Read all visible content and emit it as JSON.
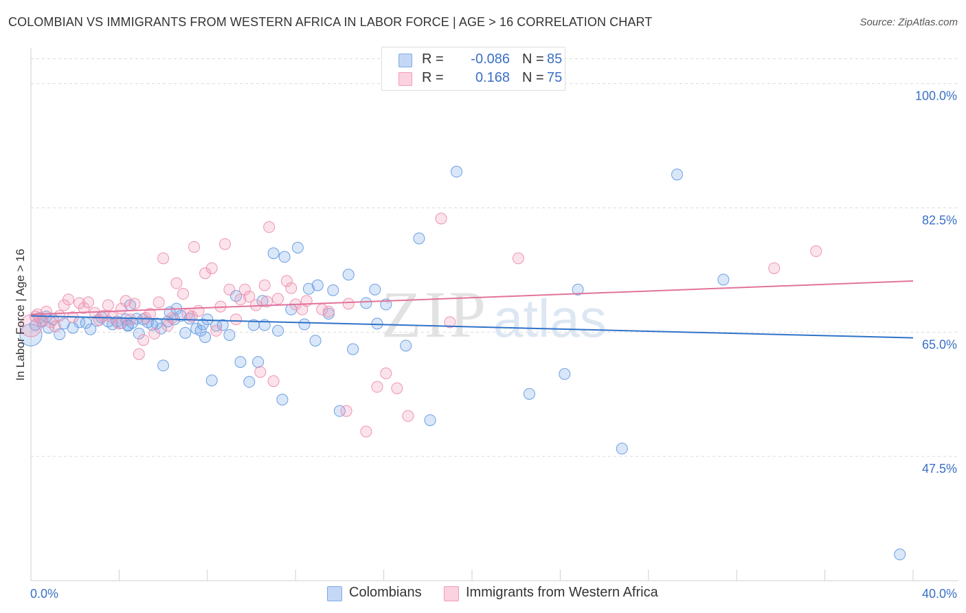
{
  "title": "COLOMBIAN VS IMMIGRANTS FROM WESTERN AFRICA IN LABOR FORCE | AGE > 16 CORRELATION CHART",
  "source": "Source: ZipAtlas.com",
  "watermark": "ZIPatlas",
  "legend": {
    "rows": [
      {
        "r_label": "R =",
        "r_value": "-0.086",
        "n_label": "N =",
        "n_value": "85"
      },
      {
        "r_label": "R =",
        "r_value": "0.168",
        "n_label": "N =",
        "n_value": "75"
      }
    ]
  },
  "chart_data": {
    "type": "scatter",
    "ylabel": "In Labor Force | Age > 16",
    "xlim": [
      0,
      40
    ],
    "ylim": [
      30,
      105
    ],
    "x_tick_labels": [
      "0.0%",
      "40.0%"
    ],
    "y_ticks": [
      47.5,
      65.0,
      82.5,
      100.0
    ],
    "y_tick_labels": [
      "47.5%",
      "65.0%",
      "82.5%",
      "100.0%"
    ],
    "grid": true,
    "colors": {
      "Colombians": "#7aaae8",
      "Immigrants from Western Africa": "#f29ab6",
      "Colombians_line": "#2f72c8",
      "Immigrants from Western Africa_line": "#e2729a"
    },
    "series": [
      {
        "name": "Colombians",
        "trend": {
          "x": [
            0,
            40
          ],
          "y": [
            67.3,
            64.2
          ]
        },
        "points": [
          [
            0.0,
            64.6
          ],
          [
            0.2,
            66.0
          ],
          [
            0.4,
            67.0
          ],
          [
            0.5,
            66.5
          ],
          [
            0.7,
            67.2
          ],
          [
            0.8,
            65.6
          ],
          [
            1.0,
            66.8
          ],
          [
            1.3,
            64.7
          ],
          [
            1.5,
            66.2
          ],
          [
            1.9,
            65.6
          ],
          [
            2.2,
            66.4
          ],
          [
            2.5,
            66.3
          ],
          [
            2.7,
            65.4
          ],
          [
            3.0,
            66.6
          ],
          [
            3.2,
            67.1
          ],
          [
            3.5,
            66.5
          ],
          [
            3.7,
            66.1
          ],
          [
            3.9,
            66.5
          ],
          [
            4.1,
            66.3
          ],
          [
            4.3,
            66.8
          ],
          [
            4.4,
            66.0
          ],
          [
            4.6,
            66.3
          ],
          [
            4.8,
            66.9
          ],
          [
            4.4,
            65.9
          ],
          [
            4.5,
            68.8
          ],
          [
            4.9,
            64.8
          ],
          [
            5.1,
            66.8
          ],
          [
            5.3,
            66.4
          ],
          [
            5.5,
            66.0
          ],
          [
            5.7,
            66.2
          ],
          [
            5.9,
            65.5
          ],
          [
            6.0,
            60.3
          ],
          [
            6.2,
            66.5
          ],
          [
            6.3,
            67.8
          ],
          [
            6.5,
            66.8
          ],
          [
            6.6,
            68.3
          ],
          [
            6.8,
            67.3
          ],
          [
            7.0,
            64.9
          ],
          [
            7.2,
            66.9
          ],
          [
            7.5,
            65.5
          ],
          [
            7.7,
            65.2
          ],
          [
            7.8,
            66.1
          ],
          [
            7.9,
            64.3
          ],
          [
            8.0,
            66.8
          ],
          [
            8.2,
            58.2
          ],
          [
            8.4,
            65.9
          ],
          [
            8.7,
            66.0
          ],
          [
            9.0,
            64.6
          ],
          [
            9.3,
            70.1
          ],
          [
            9.5,
            60.8
          ],
          [
            9.9,
            58.0
          ],
          [
            10.1,
            66.0
          ],
          [
            10.3,
            60.8
          ],
          [
            10.5,
            69.4
          ],
          [
            10.6,
            66.0
          ],
          [
            11.0,
            76.1
          ],
          [
            11.2,
            65.2
          ],
          [
            11.4,
            55.5
          ],
          [
            11.5,
            75.6
          ],
          [
            11.8,
            68.2
          ],
          [
            12.1,
            76.9
          ],
          [
            12.4,
            66.1
          ],
          [
            12.6,
            71.1
          ],
          [
            12.9,
            63.8
          ],
          [
            13.0,
            71.6
          ],
          [
            13.5,
            67.6
          ],
          [
            13.7,
            70.9
          ],
          [
            14.0,
            53.9
          ],
          [
            14.4,
            73.1
          ],
          [
            14.6,
            62.6
          ],
          [
            15.2,
            69.1
          ],
          [
            15.6,
            71.0
          ],
          [
            15.7,
            66.2
          ],
          [
            16.1,
            68.9
          ],
          [
            17.0,
            63.1
          ],
          [
            17.6,
            78.2
          ],
          [
            18.1,
            52.6
          ],
          [
            19.3,
            87.6
          ],
          [
            22.6,
            56.3
          ],
          [
            24.2,
            59.1
          ],
          [
            24.8,
            71.0
          ],
          [
            26.8,
            48.6
          ],
          [
            29.3,
            87.2
          ],
          [
            31.4,
            72.4
          ],
          [
            39.4,
            33.7
          ]
        ]
      },
      {
        "name": "Immigrants from Western Africa",
        "trend": {
          "x": [
            0,
            40
          ],
          "y": [
            67.5,
            72.2
          ]
        },
        "points": [
          [
            0.0,
            65.9
          ],
          [
            0.3,
            67.5
          ],
          [
            0.5,
            66.6
          ],
          [
            0.7,
            67.9
          ],
          [
            0.9,
            66.4
          ],
          [
            1.1,
            65.8
          ],
          [
            1.3,
            67.3
          ],
          [
            1.5,
            68.8
          ],
          [
            1.7,
            69.6
          ],
          [
            1.9,
            67.1
          ],
          [
            2.2,
            69.1
          ],
          [
            2.4,
            68.4
          ],
          [
            2.6,
            69.2
          ],
          [
            2.9,
            67.7
          ],
          [
            3.1,
            66.7
          ],
          [
            3.3,
            67.3
          ],
          [
            3.5,
            68.8
          ],
          [
            3.7,
            67.1
          ],
          [
            4.0,
            66.2
          ],
          [
            4.1,
            68.3
          ],
          [
            4.3,
            69.4
          ],
          [
            4.5,
            66.8
          ],
          [
            4.7,
            69.0
          ],
          [
            4.9,
            61.9
          ],
          [
            5.1,
            63.9
          ],
          [
            5.2,
            67.0
          ],
          [
            5.4,
            67.6
          ],
          [
            5.6,
            64.8
          ],
          [
            5.8,
            69.2
          ],
          [
            6.0,
            75.4
          ],
          [
            6.2,
            65.9
          ],
          [
            6.4,
            67.0
          ],
          [
            6.6,
            71.9
          ],
          [
            6.9,
            70.4
          ],
          [
            7.1,
            67.5
          ],
          [
            7.3,
            67.2
          ],
          [
            7.4,
            77.0
          ],
          [
            7.6,
            68.0
          ],
          [
            7.9,
            73.3
          ],
          [
            8.2,
            74.0
          ],
          [
            8.4,
            65.2
          ],
          [
            8.6,
            68.6
          ],
          [
            8.8,
            77.4
          ],
          [
            9.0,
            71.0
          ],
          [
            9.3,
            66.8
          ],
          [
            9.5,
            69.6
          ],
          [
            9.7,
            71.0
          ],
          [
            9.9,
            70.0
          ],
          [
            10.2,
            68.8
          ],
          [
            10.4,
            59.4
          ],
          [
            10.6,
            71.6
          ],
          [
            10.7,
            69.3
          ],
          [
            11.0,
            58.1
          ],
          [
            11.2,
            69.7
          ],
          [
            11.6,
            72.2
          ],
          [
            11.8,
            71.2
          ],
          [
            12.0,
            68.9
          ],
          [
            12.3,
            68.2
          ],
          [
            12.5,
            69.4
          ],
          [
            13.2,
            68.2
          ],
          [
            13.5,
            67.9
          ],
          [
            14.4,
            69.0
          ],
          [
            14.3,
            53.9
          ],
          [
            15.2,
            51.0
          ],
          [
            15.7,
            57.3
          ],
          [
            16.1,
            59.2
          ],
          [
            16.6,
            57.1
          ],
          [
            17.1,
            53.2
          ],
          [
            18.6,
            81.0
          ],
          [
            19.0,
            66.4
          ],
          [
            22.1,
            75.4
          ],
          [
            10.8,
            79.8
          ],
          [
            33.7,
            74.0
          ],
          [
            35.6,
            76.4
          ],
          [
            0.2,
            67.2
          ]
        ]
      }
    ]
  }
}
